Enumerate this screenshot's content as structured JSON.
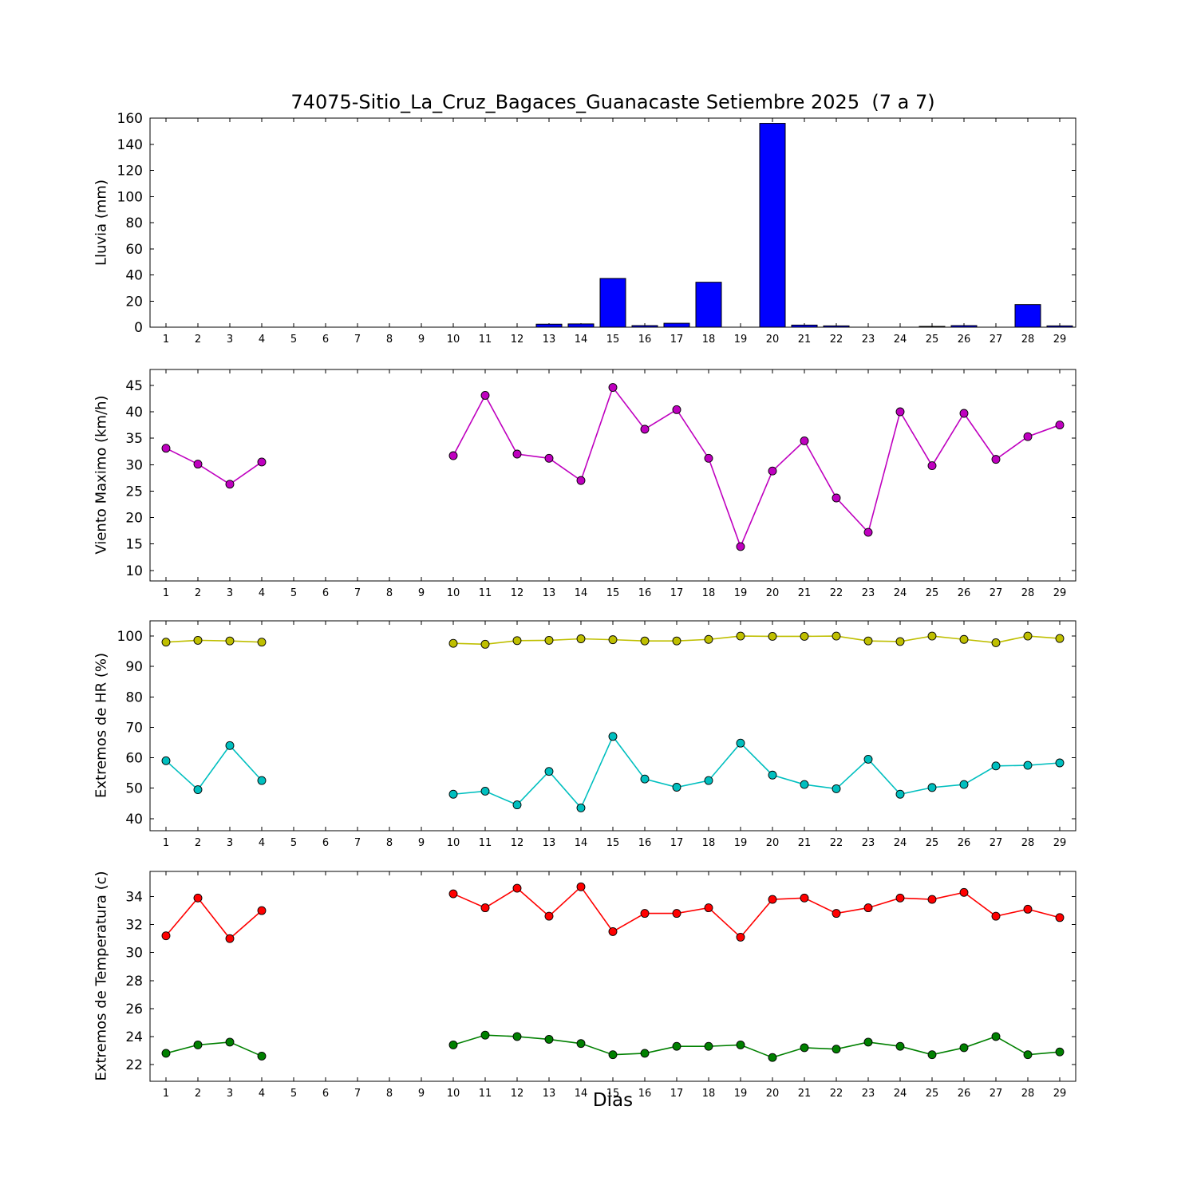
{
  "title": "74075-Sitio_La_Cruz_Bagaces_Guanacaste Setiembre 2025  (7 a 7)",
  "xlabel": "Dias",
  "days": [
    1,
    2,
    3,
    4,
    5,
    6,
    7,
    8,
    9,
    10,
    11,
    12,
    13,
    14,
    15,
    16,
    17,
    18,
    19,
    20,
    21,
    22,
    23,
    24,
    25,
    26,
    27,
    28,
    29
  ],
  "chart_data": [
    {
      "type": "bar",
      "name": "lluvia",
      "ylabel": "Lluvia (mm)",
      "color": "#0000ff",
      "ylim": [
        0,
        160
      ],
      "yticks": [
        0,
        20,
        40,
        60,
        80,
        100,
        120,
        140,
        160
      ],
      "xlim": [
        0.5,
        29.5
      ],
      "grid": false,
      "legend": "none",
      "values": [
        0,
        0,
        0,
        0,
        0,
        0,
        0,
        0,
        0,
        0,
        0,
        0,
        2.3,
        2.5,
        37.3,
        1.2,
        3.0,
        34.4,
        0,
        156.0,
        1.6,
        1.0,
        0,
        0,
        0.6,
        1.2,
        0,
        17.3,
        1.0
      ]
    },
    {
      "type": "line",
      "name": "viento-maximo",
      "ylabel": "Viento Maximo (km/h)",
      "color": "#bf00bf",
      "ylim": [
        8,
        48
      ],
      "yticks": [
        10,
        15,
        20,
        25,
        30,
        35,
        40,
        45
      ],
      "xlim": [
        0.5,
        29.5
      ],
      "grid": false,
      "legend": "none",
      "values": [
        33.1,
        30.1,
        26.3,
        30.5,
        null,
        null,
        null,
        null,
        null,
        31.7,
        43.1,
        32.0,
        31.2,
        27.0,
        44.6,
        36.7,
        40.4,
        31.2,
        14.5,
        28.8,
        34.5,
        23.7,
        17.2,
        40.0,
        29.8,
        39.7,
        31.0,
        35.3,
        37.5
      ]
    },
    {
      "type": "line",
      "name": "extremos-hr",
      "ylabel": "Extremos de HR (%)",
      "ylim": [
        36,
        105
      ],
      "yticks": [
        40,
        50,
        60,
        70,
        80,
        90,
        100
      ],
      "xlim": [
        0.5,
        29.5
      ],
      "grid": false,
      "legend": "none",
      "series": [
        {
          "name": "hr-maxima",
          "color": "#bfbf00",
          "values": [
            98.0,
            98.6,
            98.4,
            98.0,
            null,
            null,
            null,
            null,
            null,
            97.6,
            97.3,
            98.5,
            98.6,
            99.1,
            98.8,
            98.4,
            98.4,
            98.9,
            100.0,
            99.9,
            99.9,
            100.0,
            98.4,
            98.2,
            100.0,
            98.9,
            97.8,
            100.0,
            99.2
          ]
        },
        {
          "name": "hr-minima",
          "color": "#00bfbf",
          "values": [
            59.0,
            49.5,
            64.0,
            52.5,
            null,
            null,
            null,
            null,
            null,
            48.0,
            49.0,
            44.5,
            55.5,
            43.5,
            67.0,
            53.0,
            50.3,
            52.5,
            64.8,
            54.3,
            51.2,
            49.8,
            59.5,
            48.0,
            50.2,
            51.2,
            57.3,
            57.5,
            58.3
          ]
        }
      ]
    },
    {
      "type": "line",
      "name": "extremos-temperatura",
      "ylabel": "Extremos de Temperatura (c)",
      "ylim": [
        20.8,
        35.8
      ],
      "yticks": [
        22,
        24,
        26,
        28,
        30,
        32,
        34
      ],
      "xlim": [
        0.5,
        29.5
      ],
      "grid": false,
      "legend": "none",
      "series": [
        {
          "name": "temperatura-maxima",
          "color": "#ff0000",
          "values": [
            31.2,
            33.9,
            31.0,
            33.0,
            null,
            null,
            null,
            null,
            null,
            34.2,
            33.2,
            34.6,
            32.6,
            34.7,
            31.5,
            32.8,
            32.8,
            33.2,
            31.1,
            33.8,
            33.9,
            32.8,
            33.2,
            33.9,
            33.8,
            34.3,
            32.6,
            33.1,
            32.5
          ]
        },
        {
          "name": "temperatura-minima",
          "color": "#008000",
          "values": [
            22.8,
            23.4,
            23.6,
            22.6,
            null,
            null,
            null,
            null,
            null,
            23.4,
            24.1,
            24.0,
            23.8,
            23.5,
            22.7,
            22.8,
            23.3,
            23.3,
            23.4,
            22.5,
            23.2,
            23.1,
            23.6,
            23.3,
            22.7,
            23.2,
            24.0,
            22.7,
            22.9
          ]
        }
      ]
    }
  ]
}
